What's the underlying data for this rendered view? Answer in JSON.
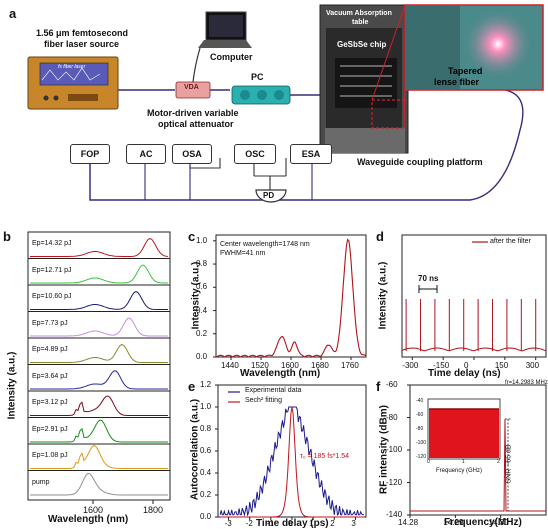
{
  "panels": {
    "a": {
      "letter": "a",
      "laser_source": "1.56 µm femtosecond\nfiber laser source",
      "laser_line1": "1.56 μm femtosecond",
      "laser_line2": "fiber laser source",
      "laser_screen_text": "fs fiber laser",
      "computer": "Computer",
      "attenuator_line1": "Motor-driven variable",
      "attenuator_line2": "optical attenuator",
      "vda": "VDA",
      "pc": "PC",
      "vacuum_line1": "Vacuum Absorption",
      "vacuum_line2": "table",
      "chip": "GeSbSe chip",
      "tapered_line1": "Tapered",
      "tapered_line2": "lense fiber",
      "platform": "Waveguide coupling platform",
      "boxes": [
        "FOP",
        "AC",
        "OSA",
        "OSC",
        "ESA"
      ],
      "pd": "PD"
    },
    "b": {
      "letter": "b",
      "ylabel": "Intensity (a.u.)",
      "xlabel": "Wavelength (nm)",
      "xticks": [
        "1600",
        "1800"
      ],
      "traces": [
        {
          "label": "Ep=14.32 pJ",
          "color": "#c0141c"
        },
        {
          "label": "Ep=12.71 pJ",
          "color": "#3ec03e"
        },
        {
          "label": "Ep=10.60 pJ",
          "color": "#1a1a7a"
        },
        {
          "label": "Ep=7.73 pJ",
          "color": "#c090d8"
        },
        {
          "label": "Ep=4.89 pJ",
          "color": "#8a8a2a"
        },
        {
          "label": "Ep=3.64 pJ",
          "color": "#2a2a9a"
        },
        {
          "label": "Ep=3.12 pJ",
          "color": "#7a0a1a"
        },
        {
          "label": "Ep=2.91 pJ",
          "color": "#1a8a1a"
        },
        {
          "label": "Ep=1.08 pJ",
          "color": "#d89a1a"
        },
        {
          "label": "pump",
          "color": "#909090"
        }
      ]
    },
    "c": {
      "letter": "c",
      "annotation1": "Center wavelength=1748 nm",
      "annotation2": "FWHM=41 nm",
      "ylabel": "Intensity (a.u.)",
      "xlabel": "Wavelength (nm)",
      "xticks": [
        "1440",
        "1520",
        "1600",
        "1680",
        "1760"
      ],
      "yticks": [
        "0.0",
        "0.2",
        "0.4",
        "0.6",
        "0.8",
        "1.0"
      ]
    },
    "d": {
      "letter": "d",
      "legend": "after the filter",
      "period": "70 ns",
      "ylabel": "Intensity (a.u.)",
      "xlabel": "Time delay (ns)",
      "xticks": [
        "-300",
        "-150",
        "0",
        "150",
        "300"
      ]
    },
    "e": {
      "letter": "e",
      "legend1": "Experimental data",
      "legend2": "Sech² fitting",
      "tau": "τ₀ = 185 fs*1.54",
      "ylabel": "Autocorrelation (a.u.)",
      "xlabel": "Time delay (ps)",
      "xticks": [
        "-3",
        "-2",
        "-1",
        "0",
        "1",
        "2",
        "3"
      ],
      "yticks": [
        "0.0",
        "0.2",
        "0.4",
        "0.6",
        "0.8",
        "1.0",
        "1.2"
      ]
    },
    "f": {
      "letter": "f",
      "fr": "fr=14.2983 MHz",
      "snr": "SNR ~65 dB",
      "ylabel": "RF intensity (dBm)",
      "xlabel": "Frequency(MHz)",
      "xticks": [
        "14.28",
        "14.29",
        "14.30"
      ],
      "yticks": [
        "-60",
        "-80",
        "-100",
        "-120",
        "-140"
      ],
      "inset_xlabel": "Frequency (GHz)",
      "inset_xticks": [
        "0",
        "1",
        "2"
      ],
      "inset_yticks": [
        "-40",
        "-60",
        "-80",
        "-100",
        "-120"
      ]
    }
  },
  "chart_data": [
    {
      "type": "line",
      "title": "",
      "xlabel": "Wavelength (nm)",
      "ylabel": "Intensity (a.u.)",
      "x": [
        1440,
        1480,
        1520,
        1560,
        1580,
        1600,
        1640,
        1680,
        1700,
        1720,
        1740,
        1748,
        1760,
        1780
      ],
      "series": [
        {
          "values": [
            0.0,
            0.01,
            0.05,
            0.16,
            0.12,
            0.18,
            0.06,
            0.08,
            0.1,
            0.3,
            0.92,
            1.0,
            0.6,
            0.02
          ]
        }
      ],
      "xlim": [
        1400,
        1800
      ],
      "ylim": [
        0,
        1.05
      ]
    },
    {
      "type": "line",
      "xlabel": "Time delay (ps)",
      "ylabel": "Autocorrelation (a.u.)",
      "x": [
        -3,
        -2,
        -1,
        -0.5,
        0,
        0.5,
        1,
        2,
        3
      ],
      "series": [
        {
          "name": "Experimental data",
          "values": [
            0.05,
            0.12,
            0.32,
            0.55,
            1.0,
            0.55,
            0.32,
            0.12,
            0.05
          ]
        },
        {
          "name": "Sech² fitting",
          "values": [
            0.0,
            0.0,
            0.02,
            0.35,
            1.0,
            0.35,
            0.02,
            0.0,
            0.0
          ]
        }
      ],
      "xlim": [
        -3.5,
        3.5
      ],
      "ylim": [
        0,
        1.2
      ]
    },
    {
      "type": "line",
      "xlabel": "Frequency(MHz)",
      "ylabel": "RF intensity (dBm)",
      "x": [
        14.28,
        14.29,
        14.2983,
        14.3,
        14.31
      ],
      "series": [
        {
          "values": [
            -138,
            -138,
            -75,
            -138,
            -138
          ]
        }
      ],
      "xlim": [
        14.28,
        14.31
      ],
      "ylim": [
        -140,
        -60
      ]
    }
  ]
}
